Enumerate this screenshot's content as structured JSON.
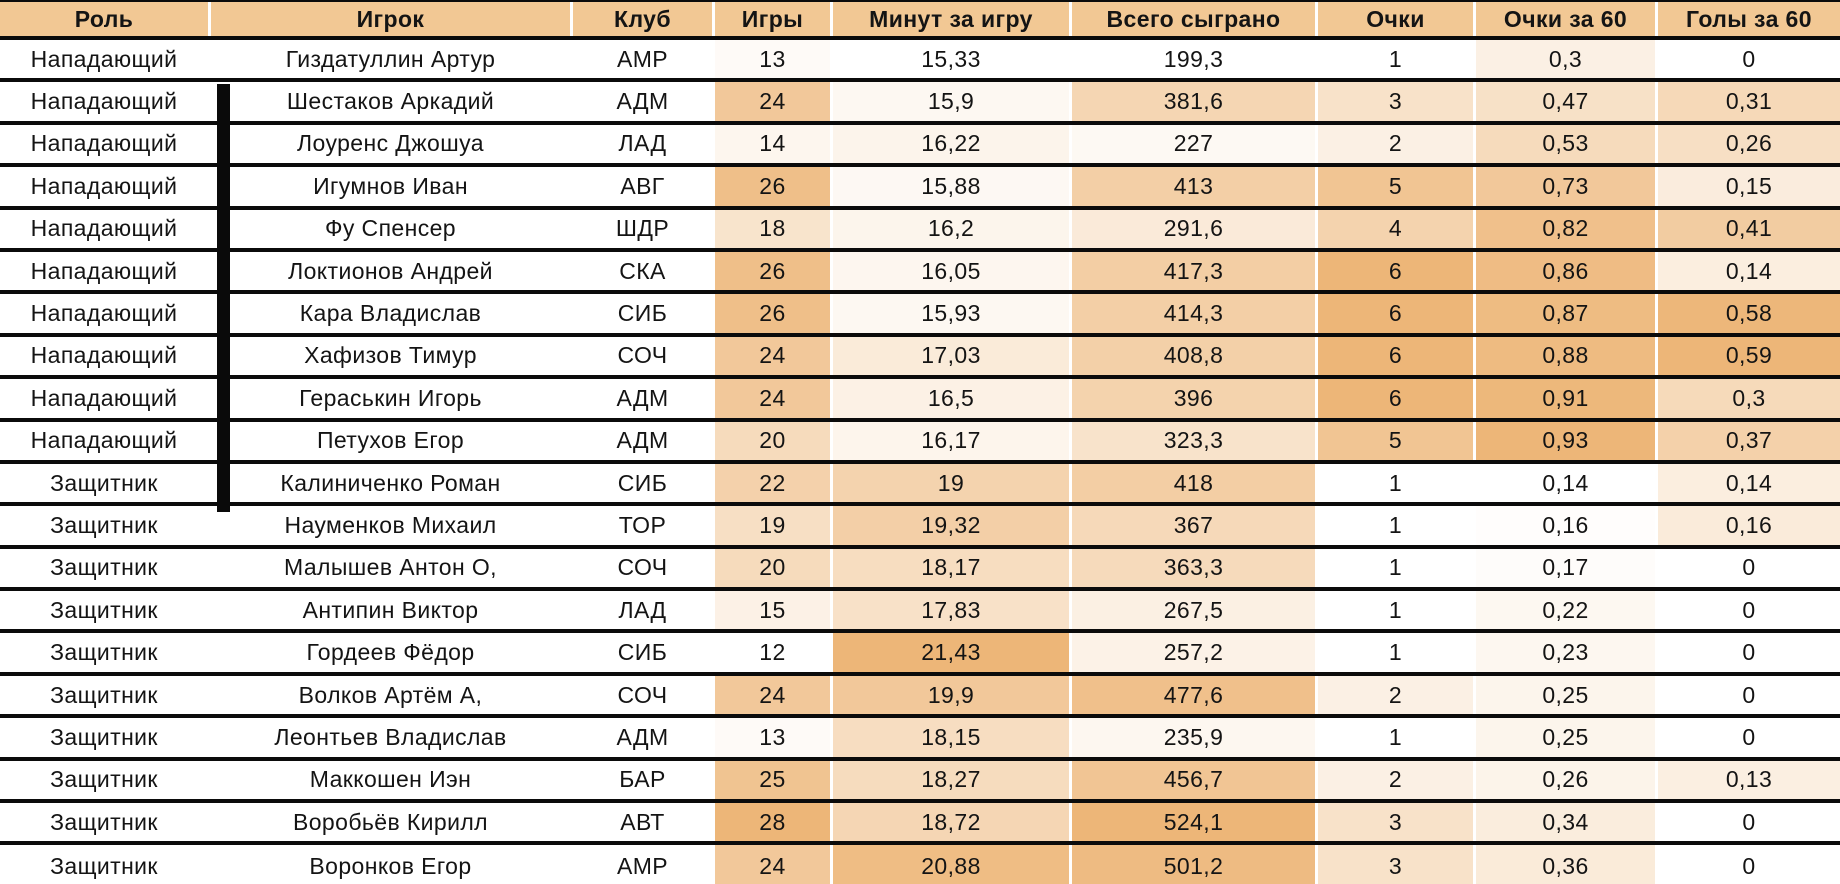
{
  "table": {
    "columns": [
      {
        "key": "role",
        "label": "Роль",
        "heatmap": false
      },
      {
        "key": "player",
        "label": "Игрок",
        "heatmap": false
      },
      {
        "key": "club",
        "label": "Клуб",
        "heatmap": false
      },
      {
        "key": "games",
        "label": "Игры",
        "heatmap": true
      },
      {
        "key": "minutes_per_game",
        "label": "Минут за игру",
        "heatmap": true
      },
      {
        "key": "total_played",
        "label": "Всего сыграно",
        "heatmap": true
      },
      {
        "key": "points",
        "label": "Очки",
        "heatmap": true
      },
      {
        "key": "points_per_60",
        "label": "Очки за 60",
        "heatmap": true
      },
      {
        "key": "goals_per_60",
        "label": "Голы за 60",
        "heatmap": true
      }
    ],
    "rows": [
      {
        "role": "Нападающий",
        "player": "Гиздатуллин Артур",
        "club": "АМР",
        "games": "13",
        "minutes_per_game": "15,33",
        "total_played": "199,3",
        "points": "1",
        "points_per_60": "0,3",
        "goals_per_60": "0"
      },
      {
        "role": "Нападающий",
        "player": "Шестаков Аркадий",
        "club": "АДМ",
        "games": "24",
        "minutes_per_game": "15,9",
        "total_played": "381,6",
        "points": "3",
        "points_per_60": "0,47",
        "goals_per_60": "0,31"
      },
      {
        "role": "Нападающий",
        "player": "Лоуренс Джошуа",
        "club": "ЛАД",
        "games": "14",
        "minutes_per_game": "16,22",
        "total_played": "227",
        "points": "2",
        "points_per_60": "0,53",
        "goals_per_60": "0,26"
      },
      {
        "role": "Нападающий",
        "player": "Игумнов Иван",
        "club": "АВГ",
        "games": "26",
        "minutes_per_game": "15,88",
        "total_played": "413",
        "points": "5",
        "points_per_60": "0,73",
        "goals_per_60": "0,15"
      },
      {
        "role": "Нападающий",
        "player": "Фу Спенсер",
        "club": "ШДР",
        "games": "18",
        "minutes_per_game": "16,2",
        "total_played": "291,6",
        "points": "4",
        "points_per_60": "0,82",
        "goals_per_60": "0,41"
      },
      {
        "role": "Нападающий",
        "player": "Локтионов Андрей",
        "club": "СКА",
        "games": "26",
        "minutes_per_game": "16,05",
        "total_played": "417,3",
        "points": "6",
        "points_per_60": "0,86",
        "goals_per_60": "0,14"
      },
      {
        "role": "Нападающий",
        "player": "Кара Владислав",
        "club": "СИБ",
        "games": "26",
        "minutes_per_game": "15,93",
        "total_played": "414,3",
        "points": "6",
        "points_per_60": "0,87",
        "goals_per_60": "0,58"
      },
      {
        "role": "Нападающий",
        "player": "Хафизов Тимур",
        "club": "СОЧ",
        "games": "24",
        "minutes_per_game": "17,03",
        "total_played": "408,8",
        "points": "6",
        "points_per_60": "0,88",
        "goals_per_60": "0,59"
      },
      {
        "role": "Нападающий",
        "player": "Гераськин Игорь",
        "club": "АДМ",
        "games": "24",
        "minutes_per_game": "16,5",
        "total_played": "396",
        "points": "6",
        "points_per_60": "0,91",
        "goals_per_60": "0,3"
      },
      {
        "role": "Нападающий",
        "player": "Петухов Егор",
        "club": "АДМ",
        "games": "20",
        "minutes_per_game": "16,17",
        "total_played": "323,3",
        "points": "5",
        "points_per_60": "0,93",
        "goals_per_60": "0,37"
      },
      {
        "role": "Защитник",
        "player": "Калиниченко Роман",
        "club": "СИБ",
        "games": "22",
        "minutes_per_game": "19",
        "total_played": "418",
        "points": "1",
        "points_per_60": "0,14",
        "goals_per_60": "0,14"
      },
      {
        "role": "Защитник",
        "player": "Науменков Михаил",
        "club": "ТОР",
        "games": "19",
        "minutes_per_game": "19,32",
        "total_played": "367",
        "points": "1",
        "points_per_60": "0,16",
        "goals_per_60": "0,16"
      },
      {
        "role": "Защитник",
        "player": "Малышев Антон О,",
        "club": "СОЧ",
        "games": "20",
        "minutes_per_game": "18,17",
        "total_played": "363,3",
        "points": "1",
        "points_per_60": "0,17",
        "goals_per_60": "0"
      },
      {
        "role": "Защитник",
        "player": "Антипин Виктор",
        "club": "ЛАД",
        "games": "15",
        "minutes_per_game": "17,83",
        "total_played": "267,5",
        "points": "1",
        "points_per_60": "0,22",
        "goals_per_60": "0"
      },
      {
        "role": "Защитник",
        "player": "Гордеев Фёдор",
        "club": "СИБ",
        "games": "12",
        "minutes_per_game": "21,43",
        "total_played": "257,2",
        "points": "1",
        "points_per_60": "0,23",
        "goals_per_60": "0"
      },
      {
        "role": "Защитник",
        "player": "Волков Артём А,",
        "club": "СОЧ",
        "games": "24",
        "minutes_per_game": "19,9",
        "total_played": "477,6",
        "points": "2",
        "points_per_60": "0,25",
        "goals_per_60": "0"
      },
      {
        "role": "Защитник",
        "player": "Леонтьев Владислав",
        "club": "АДМ",
        "games": "13",
        "minutes_per_game": "18,15",
        "total_played": "235,9",
        "points": "1",
        "points_per_60": "0,25",
        "goals_per_60": "0"
      },
      {
        "role": "Защитник",
        "player": "Маккошен Иэн",
        "club": "БАР",
        "games": "25",
        "minutes_per_game": "18,27",
        "total_played": "456,7",
        "points": "2",
        "points_per_60": "0,26",
        "goals_per_60": "0,13"
      },
      {
        "role": "Защитник",
        "player": "Воробьёв Кирилл",
        "club": "АВТ",
        "games": "28",
        "minutes_per_game": "18,72",
        "total_played": "524,1",
        "points": "3",
        "points_per_60": "0,34",
        "goals_per_60": "0"
      },
      {
        "role": "Защитник",
        "player": "Воронков Егор",
        "club": "АМР",
        "games": "24",
        "minutes_per_game": "20,88",
        "total_played": "501,2",
        "points": "3",
        "points_per_60": "0,36",
        "goals_per_60": "0"
      }
    ]
  },
  "colors": {
    "header_bg": "#F2C894",
    "heatmap_min": "#FFFFFF",
    "heatmap_max": "#EDB678",
    "grid_line": "#0B0B0B",
    "column_separator": "#FFFFFF",
    "text": "#141414",
    "marker": "#0A0A0A"
  },
  "row_range_marker": {
    "from_row": 2,
    "to_row": 11
  }
}
